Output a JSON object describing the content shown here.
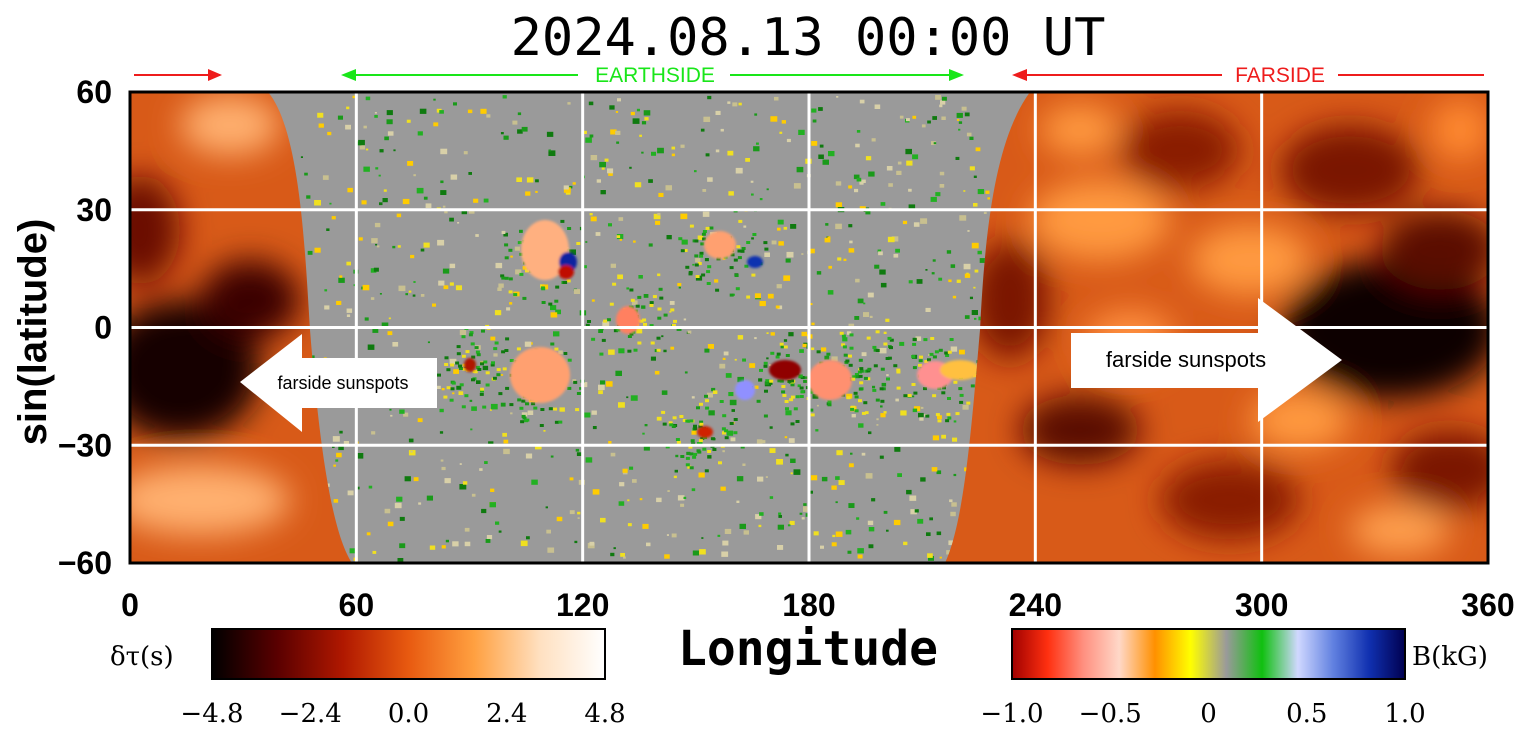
{
  "title": "2024.08.13 00:00 UT",
  "labels": {
    "earthside": "EARTHSIDE",
    "farside": "FARSIDE",
    "farside_sunspots_left": "farside sunspots",
    "farside_sunspots_right": "farside sunspots"
  },
  "colors": {
    "earthside": "#19e619",
    "farside": "#ee1c1c",
    "gridline": "#ffffff",
    "disk_gray": "#9a9a9a"
  },
  "chart_data": {
    "type": "heatmap",
    "xlabel": "Longitude",
    "ylabel": "sin(latitude)",
    "xlim": [
      0,
      360
    ],
    "ylim": [
      -60,
      60
    ],
    "x_ticks": [
      0,
      60,
      120,
      180,
      240,
      300,
      360
    ],
    "y_ticks": [
      -60,
      -30,
      0,
      30,
      60
    ],
    "grid": true,
    "earthside_longitude_range": [
      60,
      220
    ],
    "farside_longitude_ranges": [
      [
        0,
        45
      ],
      [
        225,
        360
      ]
    ],
    "colorbars": [
      {
        "label": "δτ(s)",
        "range": [
          -4.8,
          4.8
        ],
        "ticks": [
          "−4.8",
          "−2.4",
          "0.0",
          "2.4",
          "4.8"
        ],
        "stops": [
          "#000000",
          "#5a0000",
          "#b01800",
          "#e85a10",
          "#ffa040",
          "#ffe0c0",
          "#ffffff"
        ]
      },
      {
        "label": "B(kG)",
        "range": [
          -1.0,
          1.0
        ],
        "ticks": [
          "−1.0",
          "−0.5",
          "0",
          "0.5",
          "1.0"
        ],
        "stops": [
          "#a00000",
          "#ff3010",
          "#ff9080",
          "#ffd8c8",
          "#ff9000",
          "#ffff00",
          "#9a9a9a",
          "#10c010",
          "#d0d8ff",
          "#6080e0",
          "#1030b0",
          "#000050"
        ]
      }
    ]
  }
}
